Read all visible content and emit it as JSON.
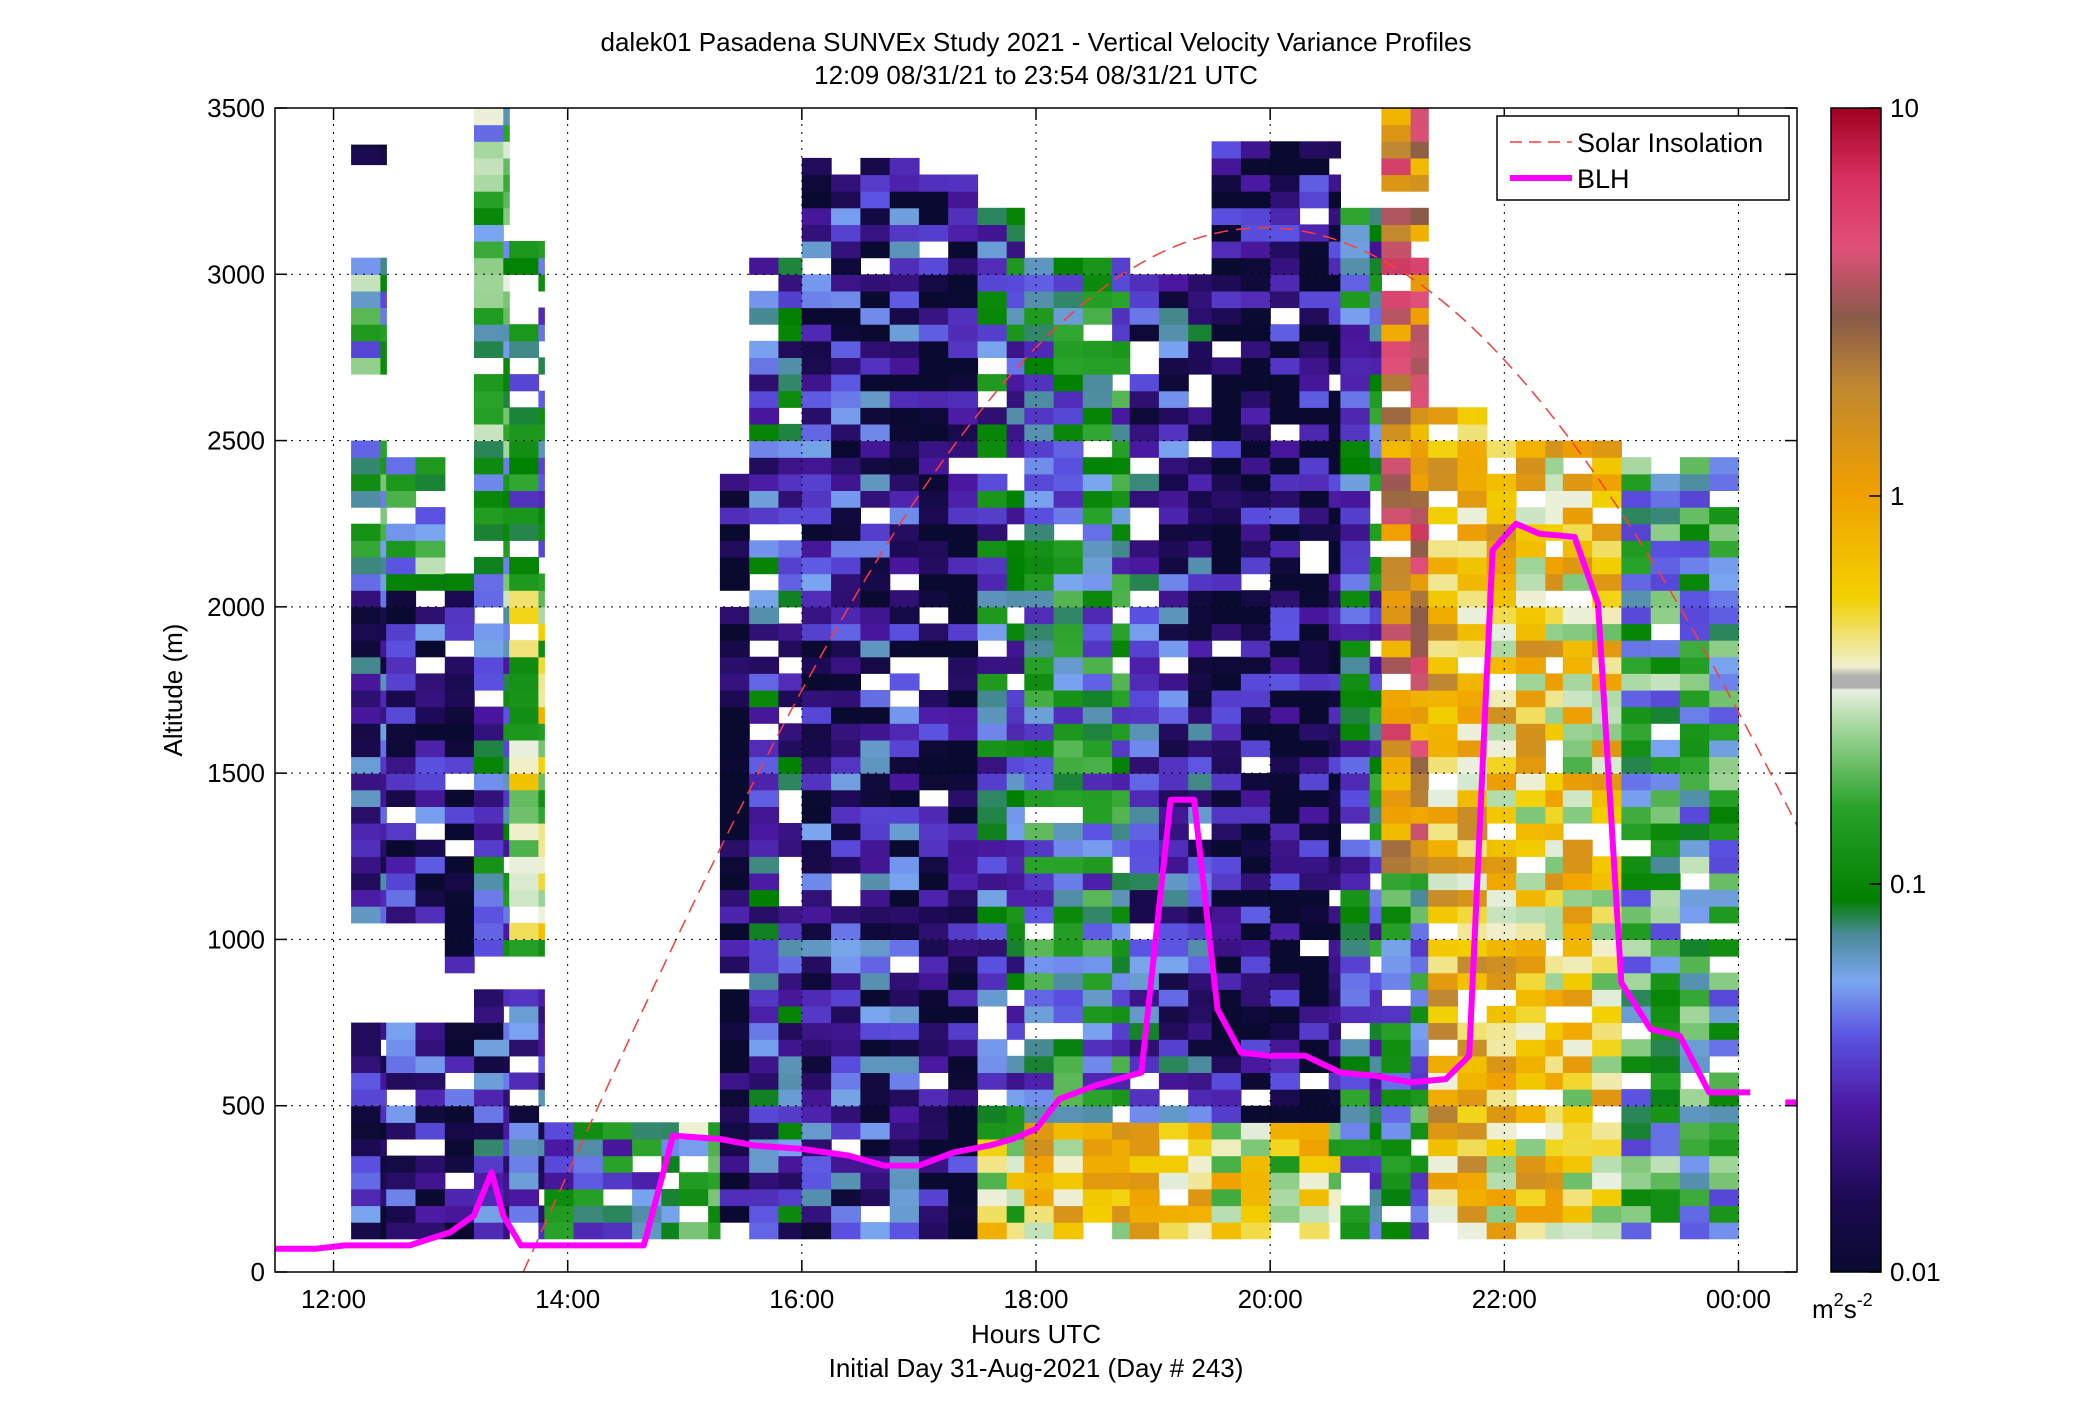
{
  "chart_data": {
    "type": "heatmap",
    "title": "dalek01 Pasadena SUNVEx Study 2021 - Vertical Velocity Variance Profiles",
    "subtitle": "12:09 08/31/21 to 23:54 08/31/21  UTC",
    "xlabel": "Hours UTC",
    "xlabel2": "Initial Day 31-Aug-2021 (Day # 243)",
    "ylabel": "Altitude (m)",
    "xlim": [
      11.5,
      24.5
    ],
    "ylim": [
      0,
      3500
    ],
    "grid": true,
    "x_ticks": [
      {
        "value": 12,
        "label": "12:00"
      },
      {
        "value": 14,
        "label": "14:00"
      },
      {
        "value": 16,
        "label": "16:00"
      },
      {
        "value": 18,
        "label": "18:00"
      },
      {
        "value": 20,
        "label": "20:00"
      },
      {
        "value": 22,
        "label": "22:00"
      },
      {
        "value": 24,
        "label": "00:00"
      }
    ],
    "y_ticks": [
      {
        "value": 0,
        "label": "0"
      },
      {
        "value": 500,
        "label": "500"
      },
      {
        "value": 1000,
        "label": "1000"
      },
      {
        "value": 1500,
        "label": "1500"
      },
      {
        "value": 2000,
        "label": "2000"
      },
      {
        "value": 2500,
        "label": "2500"
      },
      {
        "value": 3000,
        "label": "3000"
      },
      {
        "value": 3500,
        "label": "3500"
      }
    ],
    "colorbar": {
      "scale": "log",
      "range": [
        0.01,
        10
      ],
      "ticks": [
        {
          "value": 0.01,
          "label": "0.01"
        },
        {
          "value": 0.1,
          "label": "0.1"
        },
        {
          "value": 1,
          "label": "1"
        },
        {
          "value": 10,
          "label": "10"
        }
      ],
      "unit_base": "m",
      "unit_sup1": "2",
      "unit_mid": "s",
      "unit_sup2": "-2"
    },
    "legend": {
      "placement": "top-right",
      "entries": [
        {
          "name": "Solar Insolation",
          "color": "#ff3b3b",
          "style": "dashed"
        },
        {
          "name": "BLH",
          "color": "#ff00ff",
          "style": "solid"
        }
      ]
    },
    "series": [
      {
        "name": "BLH",
        "color": "#ff00ff",
        "x": [
          11.5,
          11.85,
          12.1,
          12.4,
          12.65,
          13.0,
          13.2,
          13.35,
          13.45,
          13.6,
          13.9,
          14.3,
          14.65,
          14.9,
          15.3,
          15.6,
          16.0,
          16.4,
          16.7,
          17.0,
          17.3,
          17.6,
          17.8,
          18.0,
          18.2,
          18.5,
          18.9,
          19.15,
          19.35,
          19.55,
          19.75,
          20.0,
          20.3,
          20.6,
          20.9,
          21.2,
          21.5,
          21.7,
          21.9,
          22.1,
          22.3,
          22.6,
          22.8,
          23.0,
          23.25,
          23.5,
          23.75,
          24.0,
          24.1
        ],
        "y": [
          70,
          70,
          80,
          80,
          80,
          120,
          170,
          300,
          170,
          80,
          80,
          80,
          80,
          410,
          400,
          380,
          370,
          350,
          320,
          320,
          360,
          380,
          400,
          430,
          520,
          560,
          600,
          1420,
          1420,
          790,
          660,
          650,
          650,
          600,
          590,
          570,
          580,
          650,
          2170,
          2250,
          2220,
          2210,
          2010,
          870,
          730,
          710,
          540,
          540,
          540
        ]
      },
      {
        "name": "BLH",
        "color": "#ff00ff",
        "x": [
          24.4,
          24.5
        ],
        "y": [
          510,
          510
        ]
      },
      {
        "name": "Solar Insolation",
        "color": "#ff3b3b",
        "style": "dashed",
        "shape": "sinusoid",
        "x_start": 13.62,
        "x_peak": 19.95,
        "peak_altitude": 3140
      }
    ],
    "heatmap": {
      "value_unit": "m2s-2",
      "description_of_columns": "Columns of colored cells per time interval with altitude bands; cell values in m2s-2 on log scale",
      "columns": [
        {
          "x0": 12.15,
          "x1": 12.45,
          "segments": [
            [
              100,
              750,
              0.02
            ],
            [
              1050,
              2050,
              0.03
            ],
            [
              2050,
              2500,
              0.08
            ],
            [
              2700,
              3050,
              0.1
            ],
            [
              3330,
              3390,
              0.01
            ]
          ]
        },
        {
          "x0": 12.45,
          "x1": 12.95,
          "segments": [
            [
              100,
              750,
              0.02
            ],
            [
              1050,
              2050,
              0.02
            ],
            [
              2050,
              2450,
              0.1
            ]
          ]
        },
        {
          "x0": 12.95,
          "x1": 13.2,
          "segments": [
            [
              100,
              750,
              0.02
            ],
            [
              900,
              2100,
              0.015
            ],
            [
              2050,
              2100,
              0.1
            ]
          ]
        },
        {
          "x0": 13.2,
          "x1": 13.5,
          "segments": [
            [
              100,
              850,
              0.03
            ],
            [
              950,
              2000,
              0.05
            ],
            [
              2000,
              3500,
              0.12
            ]
          ]
        },
        {
          "x0": 13.5,
          "x1": 13.8,
          "segments": [
            [
              100,
              850,
              0.03
            ],
            [
              950,
              2100,
              0.3
            ],
            [
              2100,
              3100,
              0.08
            ]
          ]
        },
        {
          "x0": 13.8,
          "x1": 14.95,
          "segments": [
            [
              100,
              450,
              0.06
            ]
          ]
        },
        {
          "x0": 14.95,
          "x1": 15.3,
          "segments": [
            [
              100,
              450,
              0.15
            ]
          ]
        },
        {
          "x0": 15.3,
          "x1": 15.55,
          "segments": [
            [
              100,
              2400,
              0.012
            ]
          ]
        },
        {
          "x0": 15.55,
          "x1": 16.0,
          "segments": [
            [
              100,
              3050,
              0.04
            ]
          ]
        },
        {
          "x0": 16.0,
          "x1": 17.0,
          "segments": [
            [
              100,
              3350,
              0.025
            ]
          ]
        },
        {
          "x0": 17.0,
          "x1": 17.5,
          "segments": [
            [
              100,
              3300,
              0.015
            ]
          ]
        },
        {
          "x0": 17.5,
          "x1": 17.9,
          "segments": [
            [
              100,
              450,
              0.3
            ],
            [
              450,
              3200,
              0.05
            ]
          ]
        },
        {
          "x0": 17.9,
          "x1": 18.8,
          "segments": [
            [
              100,
              450,
              0.6
            ],
            [
              450,
              3050,
              0.07
            ]
          ]
        },
        {
          "x0": 18.8,
          "x1": 19.5,
          "segments": [
            [
              100,
              450,
              0.5
            ],
            [
              450,
              3000,
              0.03
            ]
          ]
        },
        {
          "x0": 19.5,
          "x1": 20.6,
          "segments": [
            [
              100,
              450,
              0.35
            ],
            [
              450,
              3400,
              0.015
            ]
          ]
        },
        {
          "x0": 20.6,
          "x1": 20.95,
          "segments": [
            [
              100,
              3200,
              0.06
            ]
          ]
        },
        {
          "x0": 20.95,
          "x1": 21.35,
          "segments": [
            [
              100,
              1200,
              0.08
            ],
            [
              1200,
              3500,
              2.0
            ]
          ]
        },
        {
          "x0": 21.35,
          "x1": 21.85,
          "segments": [
            [
              100,
              2600,
              0.8
            ]
          ]
        },
        {
          "x0": 21.85,
          "x1": 22.5,
          "segments": [
            [
              100,
              2500,
              0.6
            ]
          ]
        },
        {
          "x0": 22.5,
          "x1": 23.0,
          "segments": [
            [
              100,
              2500,
              0.5
            ]
          ]
        },
        {
          "x0": 23.0,
          "x1": 24.0,
          "segments": [
            [
              100,
              2450,
              0.1
            ]
          ]
        }
      ]
    }
  },
  "colors": {
    "background": "#ffffff",
    "axes": "#000000",
    "grid": "#000000",
    "blh": "#ff00ff",
    "solar": "#ff3b3b"
  }
}
